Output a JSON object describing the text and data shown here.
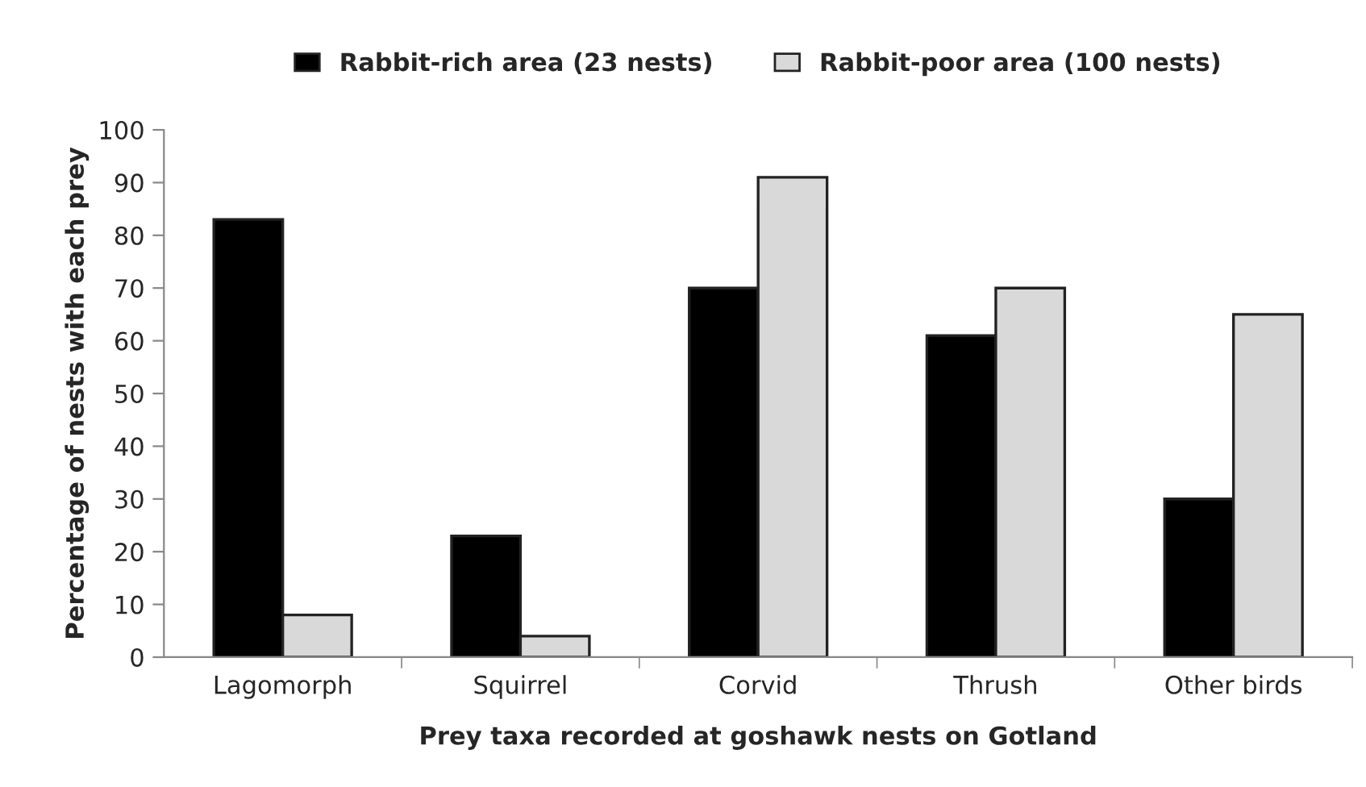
{
  "chart_data": {
    "type": "bar",
    "xlabel": "Prey taxa recorded at goshawk nests on Gotland",
    "ylabel": "Percentage of nests with each prey",
    "categories": [
      "Lagomorph",
      "Squirrel",
      "Corvid",
      "Thrush",
      "Other birds"
    ],
    "series": [
      {
        "name": "Rabbit-rich area (23 nests)",
        "color": "#000000",
        "values": [
          83,
          23,
          70,
          61,
          30
        ]
      },
      {
        "name": "Rabbit-poor area (100 nests)",
        "color": "#d9d9d9",
        "values": [
          8,
          4,
          91,
          70,
          65
        ]
      }
    ],
    "ylim": [
      0,
      100
    ],
    "yticks": [
      0,
      10,
      20,
      30,
      40,
      50,
      60,
      70,
      80,
      90,
      100
    ],
    "grid": false,
    "legend": "top"
  }
}
